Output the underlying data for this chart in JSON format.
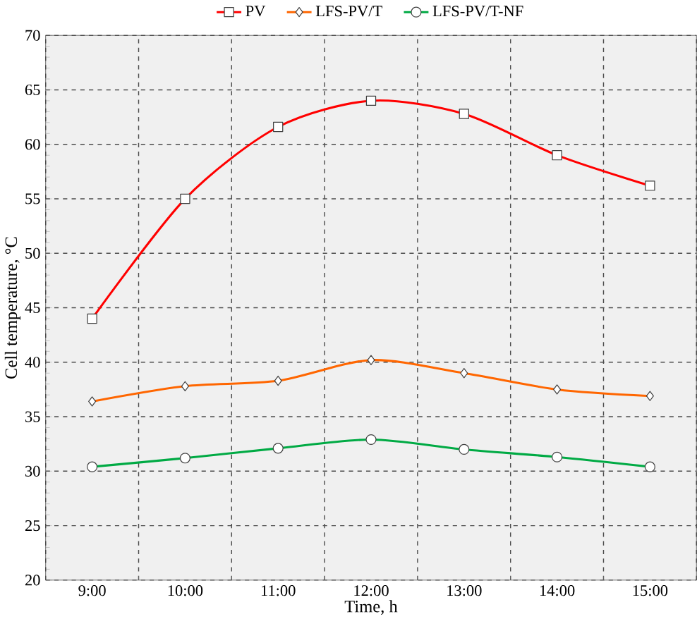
{
  "chart_data": {
    "type": "line",
    "xlabel": "Time, h",
    "ylabel": "Cell temperature, °C",
    "categories": [
      "9:00",
      "10:00",
      "11:00",
      "12:00",
      "13:00",
      "14:00",
      "15:00"
    ],
    "series": [
      {
        "name": "PV",
        "color": "#ff0000",
        "marker": "square",
        "values": [
          44,
          55,
          61.6,
          64,
          62.8,
          59,
          56.2
        ]
      },
      {
        "name": "LFS-PV/T",
        "color": "#ff6600",
        "marker": "diamond",
        "values": [
          36.4,
          37.8,
          38.3,
          40.2,
          39,
          37.5,
          36.9
        ]
      },
      {
        "name": "LFS-PV/T-NF",
        "color": "#00aa44",
        "marker": "circle",
        "values": [
          30.4,
          31.2,
          32.1,
          32.9,
          32,
          31.3,
          30.4
        ]
      }
    ],
    "ylim": [
      20,
      70
    ],
    "yticks": [
      20,
      25,
      30,
      35,
      40,
      45,
      50,
      55,
      60,
      65,
      70
    ],
    "grid": true,
    "legend": "top",
    "line_style": "solid"
  }
}
